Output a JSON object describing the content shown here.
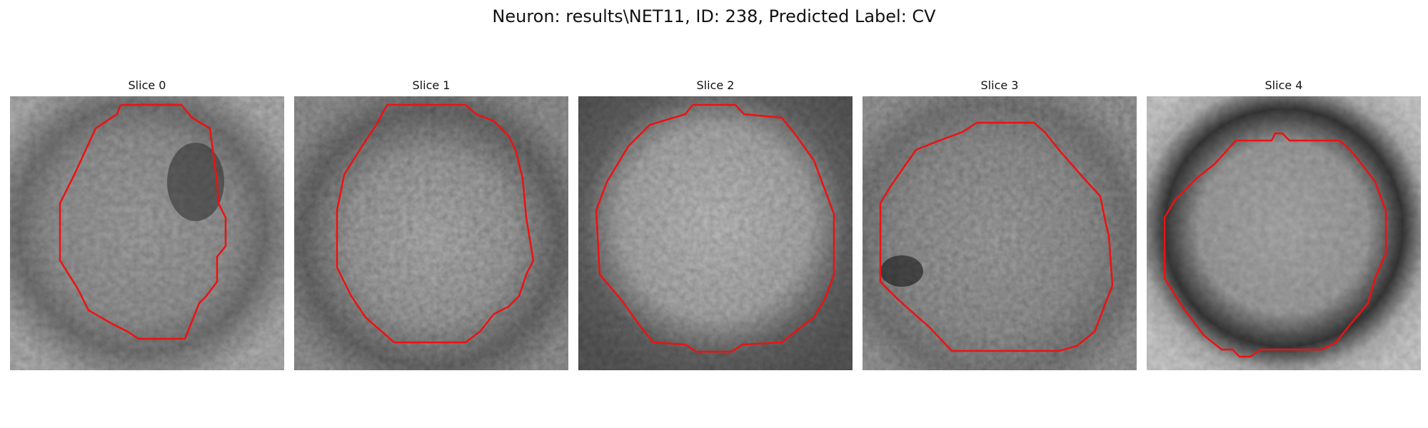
{
  "figure": {
    "title": "Neuron: results\\NET11, ID: 238, Predicted Label: CV"
  },
  "panels": [
    {
      "title": "Slice 0"
    },
    {
      "title": "Slice 1"
    },
    {
      "title": "Slice 2"
    },
    {
      "title": "Slice 3"
    },
    {
      "title": "Slice 4"
    }
  ],
  "colors": {
    "contour": "#ee1111"
  }
}
